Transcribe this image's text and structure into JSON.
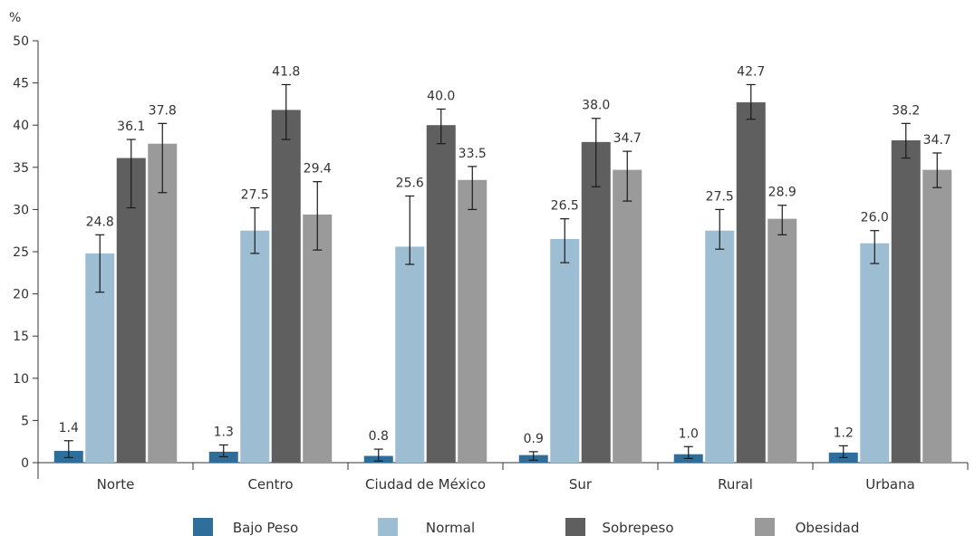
{
  "chart_data": {
    "type": "bar",
    "ylabel": "%",
    "ylim": [
      0,
      50
    ],
    "yticks": [
      0,
      5,
      10,
      15,
      20,
      25,
      30,
      35,
      40,
      45,
      50
    ],
    "categories": [
      "Norte",
      "Centro",
      "Ciudad de México",
      "Sur",
      "Rural",
      "Urbana"
    ],
    "series": [
      {
        "name": "Bajo Peso",
        "color": "#2f6e9a",
        "values": [
          1.4,
          1.3,
          0.8,
          0.9,
          1.0,
          1.2
        ],
        "labels": [
          "1.4",
          "1.3",
          "0.8",
          "0.9",
          "1.0",
          "1.2"
        ],
        "err_low": [
          0.6,
          0.7,
          0.2,
          0.3,
          0.5,
          0.6
        ],
        "err_high": [
          2.6,
          2.1,
          1.6,
          1.3,
          1.9,
          2.0
        ]
      },
      {
        "name": "Normal",
        "color": "#9dbdd3",
        "values": [
          24.8,
          27.5,
          25.6,
          26.5,
          27.5,
          26.0
        ],
        "labels": [
          "24.8",
          "27.5",
          "25.6",
          "26.5",
          "27.5",
          "26.0"
        ],
        "err_low": [
          20.2,
          24.8,
          23.5,
          23.7,
          25.3,
          23.6
        ],
        "err_high": [
          27.0,
          30.2,
          31.6,
          28.9,
          30.0,
          27.5
        ]
      },
      {
        "name": "Sobrepeso",
        "color": "#5f5f5f",
        "values": [
          36.1,
          41.8,
          40.0,
          38.0,
          42.7,
          38.2
        ],
        "labels": [
          "36.1",
          "41.8",
          "40.0",
          "38.0",
          "42.7",
          "38.2"
        ],
        "err_low": [
          30.2,
          38.3,
          37.8,
          32.7,
          40.7,
          36.1
        ],
        "err_high": [
          38.3,
          44.8,
          41.9,
          40.8,
          44.8,
          40.2
        ]
      },
      {
        "name": "Obesidad",
        "color": "#9a9a9a",
        "values": [
          37.8,
          29.4,
          33.5,
          34.7,
          28.9,
          34.7
        ],
        "labels": [
          "37.8",
          "29.4",
          "33.5",
          "34.7",
          "28.9",
          "34.7"
        ],
        "err_low": [
          32.0,
          25.2,
          30.0,
          31.0,
          27.0,
          32.6
        ],
        "err_high": [
          40.2,
          33.3,
          35.1,
          36.9,
          30.5,
          36.7
        ]
      }
    ],
    "legend_position": "bottom",
    "grid": false
  }
}
